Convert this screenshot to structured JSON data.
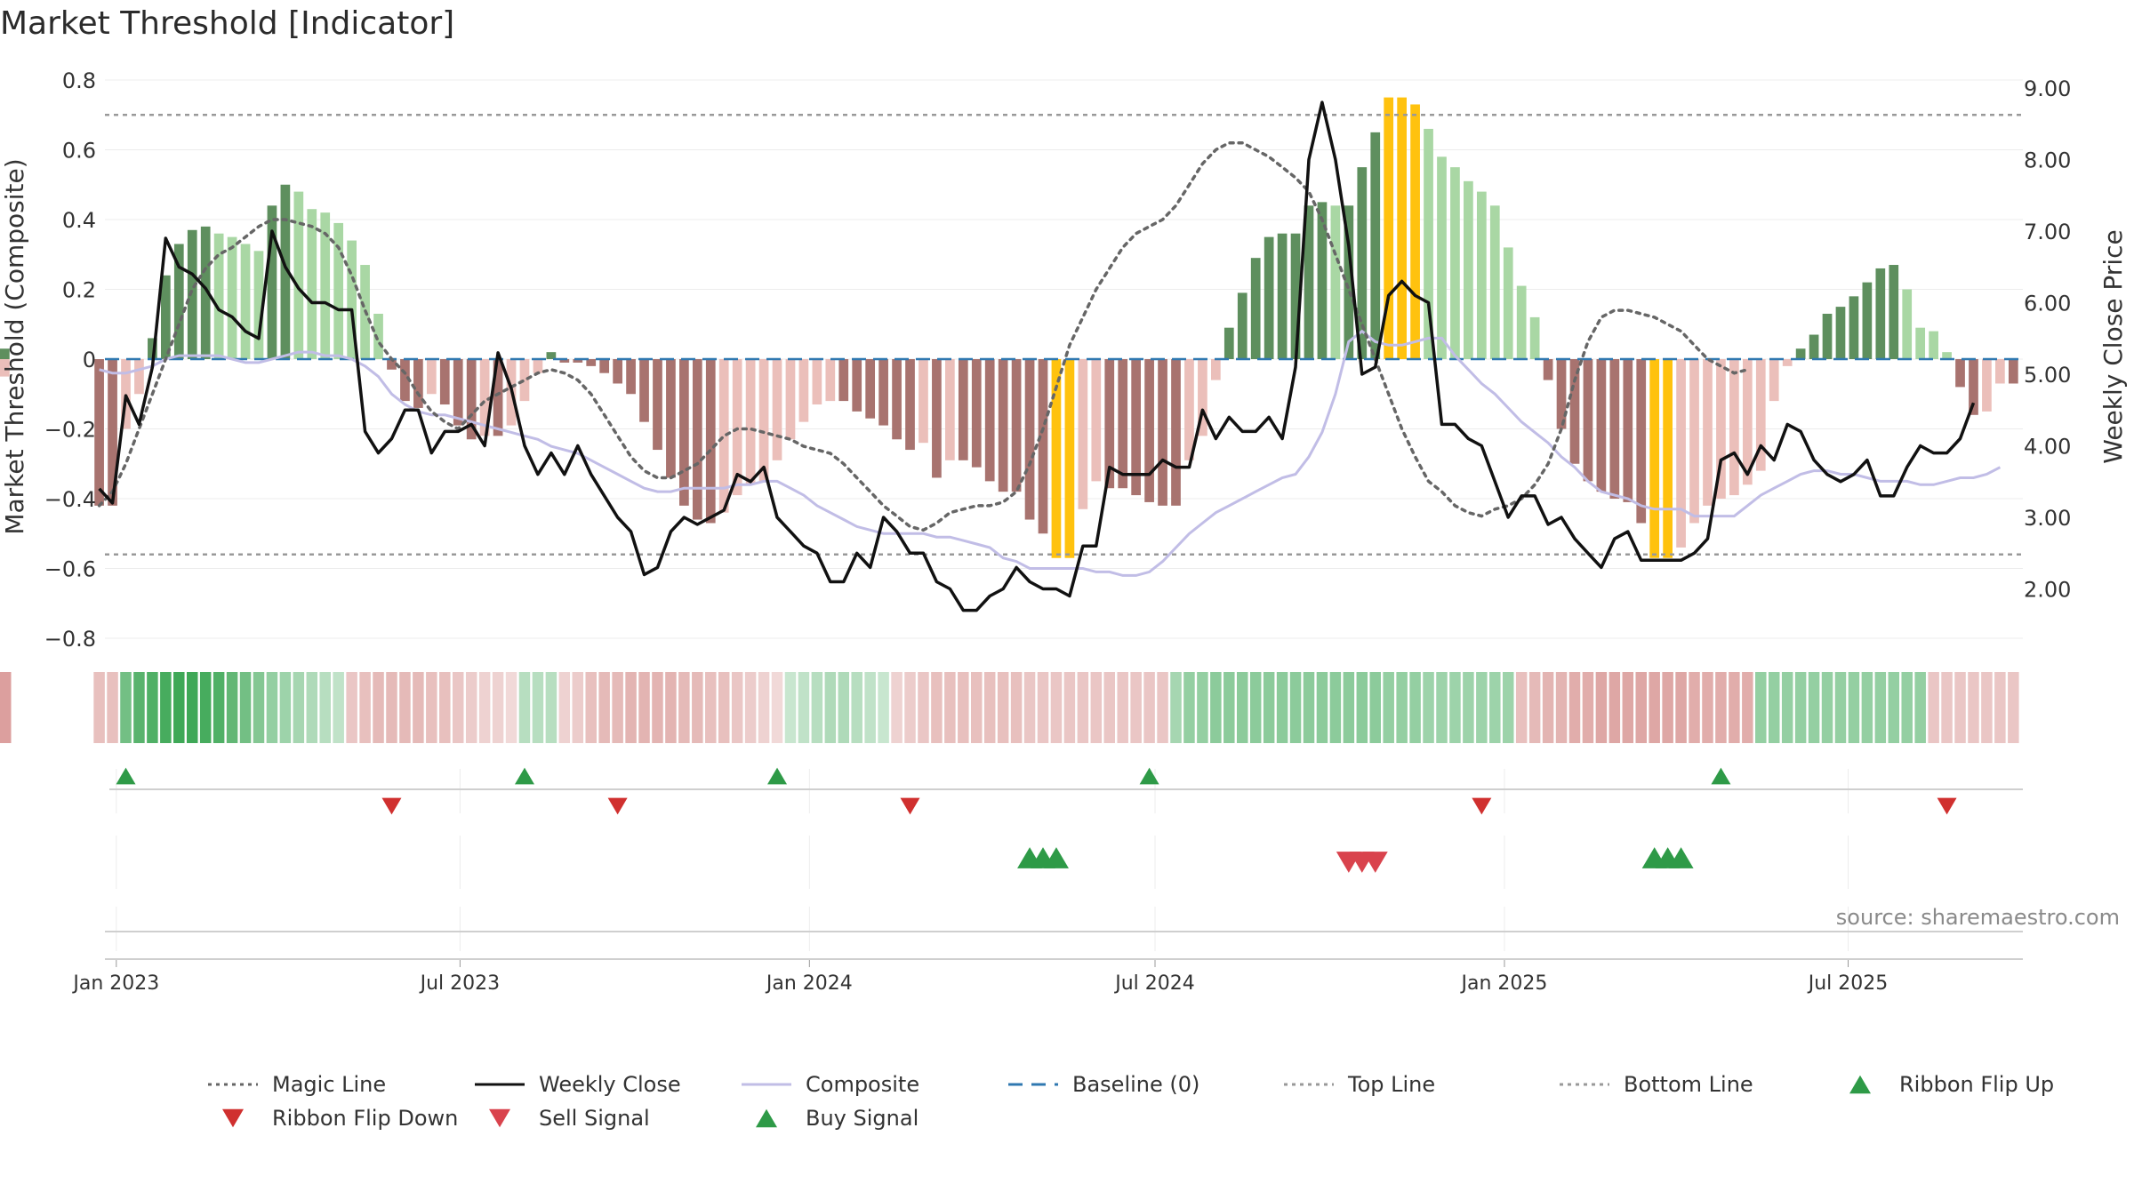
{
  "title": "Market Threshold [Indicator]",
  "source_text": "source: sharemaestro.com",
  "colors": {
    "bull_dark": "#5e8f5e",
    "bull_light": "#a9d7a4",
    "bear_dark": "#a8736f",
    "bear_light": "#ebbfba",
    "extreme": "#ffc20e",
    "magic": "#666666",
    "close": "#111111",
    "composite": "#c1bde6",
    "baseline": "#2f78b0",
    "guide": "#999999",
    "buy": "#2e9a47",
    "sell": "#d9434d",
    "flip_down": "#d0302f"
  },
  "chart_data": {
    "type": "bar",
    "x": [
      "2022-12-23",
      "2022-12-30",
      "2023-01-06",
      "2023-01-13",
      "2023-01-20",
      "2023-01-27",
      "2023-02-03",
      "2023-02-10",
      "2023-02-17",
      "2023-02-24",
      "2023-03-03",
      "2023-03-10",
      "2023-03-17",
      "2023-03-24",
      "2023-03-31",
      "2023-04-07",
      "2023-04-14",
      "2023-04-21",
      "2023-04-28",
      "2023-05-05",
      "2023-05-12",
      "2023-05-19",
      "2023-05-26",
      "2023-06-02",
      "2023-06-09",
      "2023-06-16",
      "2023-06-23",
      "2023-06-30",
      "2023-07-07",
      "2023-07-14",
      "2023-07-21",
      "2023-07-28",
      "2023-08-04",
      "2023-08-11",
      "2023-08-18",
      "2023-08-25",
      "2023-09-01",
      "2023-09-08",
      "2023-09-15",
      "2023-09-22",
      "2023-09-29",
      "2023-10-06",
      "2023-10-13",
      "2023-10-20",
      "2023-10-27",
      "2023-11-03",
      "2023-11-10",
      "2023-11-17",
      "2023-11-24",
      "2023-12-01",
      "2023-12-08",
      "2023-12-15",
      "2023-12-22",
      "2023-12-29",
      "2024-01-05",
      "2024-01-12",
      "2024-01-19",
      "2024-01-26",
      "2024-02-02",
      "2024-02-09",
      "2024-02-16",
      "2024-02-23",
      "2024-03-01",
      "2024-03-08",
      "2024-03-15",
      "2024-03-22",
      "2024-03-29",
      "2024-04-05",
      "2024-04-12",
      "2024-04-19",
      "2024-04-26",
      "2024-05-03",
      "2024-05-10",
      "2024-05-17",
      "2024-05-24",
      "2024-05-31",
      "2024-06-07",
      "2024-06-14",
      "2024-06-21",
      "2024-06-28",
      "2024-07-05",
      "2024-07-12",
      "2024-07-19",
      "2024-07-26",
      "2024-08-02",
      "2024-08-09",
      "2024-08-16",
      "2024-08-23",
      "2024-08-30",
      "2024-09-06",
      "2024-09-13",
      "2024-09-20",
      "2024-09-27",
      "2024-10-04",
      "2024-10-11",
      "2024-10-18",
      "2024-10-25",
      "2024-11-01",
      "2024-11-08",
      "2024-11-15",
      "2024-11-22",
      "2024-11-29",
      "2024-12-06",
      "2024-12-13",
      "2024-12-20",
      "2024-12-27",
      "2025-01-03",
      "2025-01-10",
      "2025-01-17",
      "2025-01-24",
      "2025-01-31",
      "2025-02-07",
      "2025-02-14",
      "2025-02-21",
      "2025-02-28",
      "2025-03-07",
      "2025-03-14",
      "2025-03-21",
      "2025-03-28",
      "2025-04-04",
      "2025-04-11",
      "2025-04-18",
      "2025-04-25",
      "2025-05-02",
      "2025-05-09",
      "2025-05-16",
      "2025-05-23",
      "2025-05-30",
      "2025-06-06",
      "2025-06-13",
      "2025-06-20",
      "2025-06-27",
      "2025-07-04",
      "2025-07-11",
      "2025-07-18",
      "2025-07-25",
      "2025-08-01",
      "2025-08-08",
      "2025-08-15",
      "2025-08-22",
      "2025-08-29",
      "2025-09-05",
      "2025-09-12",
      "2025-09-19",
      "2025-09-26"
    ],
    "composite_bars": [
      -0.42,
      -0.42,
      -0.2,
      -0.1,
      0.06,
      0.24,
      0.33,
      0.37,
      0.38,
      0.36,
      0.35,
      0.33,
      0.31,
      0.44,
      0.5,
      0.48,
      0.43,
      0.42,
      0.39,
      0.34,
      0.27,
      0.13,
      -0.03,
      -0.12,
      -0.14,
      -0.1,
      -0.13,
      -0.19,
      -0.23,
      -0.22,
      -0.22,
      -0.19,
      -0.12,
      -0.04,
      0.02,
      -0.01,
      -0.01,
      -0.02,
      -0.04,
      -0.07,
      -0.1,
      -0.18,
      -0.26,
      -0.34,
      -0.42,
      -0.46,
      -0.47,
      -0.44,
      -0.39,
      -0.36,
      -0.35,
      -0.29,
      -0.23,
      -0.18,
      -0.13,
      -0.12,
      -0.12,
      -0.15,
      -0.17,
      -0.19,
      -0.23,
      -0.26,
      -0.24,
      -0.34,
      -0.29,
      -0.29,
      -0.31,
      -0.35,
      -0.38,
      -0.38,
      -0.46,
      -0.5,
      -0.57,
      -0.57,
      -0.43,
      -0.35,
      -0.37,
      -0.37,
      -0.39,
      -0.41,
      -0.42,
      -0.42,
      -0.29,
      -0.22,
      -0.06,
      0.09,
      0.19,
      0.29,
      0.35,
      0.36,
      0.36,
      0.44,
      0.45,
      0.44,
      0.44,
      0.55,
      0.65,
      0.75,
      0.75,
      0.73,
      0.66,
      0.58,
      0.55,
      0.51,
      0.48,
      0.44,
      0.32,
      0.21,
      0.12,
      -0.06,
      -0.2,
      -0.3,
      -0.35,
      -0.38,
      -0.4,
      -0.41,
      -0.47,
      -0.57,
      -0.57,
      -0.54,
      -0.47,
      -0.42,
      -0.4,
      -0.39,
      -0.36,
      -0.32,
      -0.12,
      -0.02,
      0.03,
      0.07,
      0.13,
      0.15,
      0.18,
      0.22,
      0.26,
      0.27,
      0.2,
      0.09,
      0.08,
      0.02,
      -0.08,
      -0.16,
      -0.15,
      -0.07,
      -0.07,
      -0.05,
      -0.04,
      0.03
    ],
    "weekly_close": [
      3.4,
      3.2,
      4.7,
      4.3,
      5.1,
      6.9,
      6.5,
      6.4,
      6.2,
      5.9,
      5.8,
      5.6,
      5.5,
      7.0,
      6.5,
      6.2,
      6.0,
      6.0,
      5.9,
      5.9,
      4.2,
      3.9,
      4.1,
      4.5,
      4.5,
      3.9,
      4.2,
      4.2,
      4.3,
      4.0,
      5.3,
      4.8,
      4.0,
      3.6,
      3.9,
      3.6,
      4.0,
      3.6,
      3.3,
      3.0,
      2.8,
      2.2,
      2.3,
      2.8,
      3.0,
      2.9,
      3.0,
      3.1,
      3.6,
      3.5,
      3.7,
      3.0,
      2.8,
      2.6,
      2.5,
      2.1,
      2.1,
      2.5,
      2.3,
      3.0,
      2.8,
      2.5,
      2.5,
      2.1,
      2.0,
      1.7,
      1.7,
      1.9,
      2.0,
      2.3,
      2.1,
      2.0,
      2.0,
      1.9,
      2.6,
      2.6,
      3.7,
      3.6,
      3.6,
      3.6,
      3.8,
      3.7,
      3.7,
      4.5,
      4.1,
      4.4,
      4.2,
      4.2,
      4.4,
      4.1,
      5.1,
      8.0,
      8.8,
      8.0,
      6.8,
      5.0,
      5.1,
      6.1,
      6.3,
      6.1,
      6.0,
      4.3,
      4.3,
      4.1,
      4.0,
      3.5,
      3.0,
      3.3,
      3.3,
      2.9,
      3.0,
      2.7,
      2.5,
      2.3,
      2.7,
      2.8,
      2.4,
      2.4,
      2.4,
      2.4,
      2.5,
      2.7,
      3.8,
      3.9,
      3.6,
      4.0,
      3.8,
      4.3,
      4.2,
      3.8,
      3.6,
      3.5,
      3.6,
      3.8,
      3.3,
      3.3,
      3.7,
      4.0,
      3.9,
      3.9,
      4.1,
      4.6
    ],
    "composite_line": [
      -0.03,
      -0.04,
      -0.04,
      -0.03,
      -0.02,
      0.0,
      0.01,
      0.01,
      0.01,
      0.01,
      0.0,
      -0.01,
      -0.01,
      0.0,
      0.01,
      0.02,
      0.02,
      0.01,
      0.01,
      0.0,
      -0.02,
      -0.05,
      -0.1,
      -0.13,
      -0.15,
      -0.16,
      -0.16,
      -0.17,
      -0.18,
      -0.19,
      -0.2,
      -0.21,
      -0.22,
      -0.23,
      -0.25,
      -0.26,
      -0.27,
      -0.29,
      -0.31,
      -0.33,
      -0.35,
      -0.37,
      -0.38,
      -0.38,
      -0.37,
      -0.37,
      -0.37,
      -0.37,
      -0.36,
      -0.36,
      -0.35,
      -0.35,
      -0.37,
      -0.39,
      -0.42,
      -0.44,
      -0.46,
      -0.48,
      -0.49,
      -0.5,
      -0.5,
      -0.5,
      -0.5,
      -0.51,
      -0.51,
      -0.52,
      -0.53,
      -0.54,
      -0.57,
      -0.58,
      -0.6,
      -0.6,
      -0.6,
      -0.6,
      -0.6,
      -0.61,
      -0.61,
      -0.62,
      -0.62,
      -0.61,
      -0.58,
      -0.54,
      -0.5,
      -0.47,
      -0.44,
      -0.42,
      -0.4,
      -0.38,
      -0.36,
      -0.34,
      -0.33,
      -0.28,
      -0.21,
      -0.1,
      0.05,
      0.08,
      0.05,
      0.04,
      0.04,
      0.05,
      0.06,
      0.06,
      0.01,
      -0.03,
      -0.07,
      -0.1,
      -0.14,
      -0.18,
      -0.21,
      -0.24,
      -0.28,
      -0.31,
      -0.35,
      -0.38,
      -0.39,
      -0.4,
      -0.42,
      -0.43,
      -0.43,
      -0.43,
      -0.45,
      -0.45,
      -0.45,
      -0.45,
      -0.42,
      -0.39,
      -0.37,
      -0.35,
      -0.33,
      -0.32,
      -0.32,
      -0.33,
      -0.33,
      -0.34,
      -0.35,
      -0.35,
      -0.35,
      -0.36,
      -0.36,
      -0.35,
      -0.34,
      -0.34,
      -0.33,
      -0.31
    ],
    "magic_line": [
      -0.42,
      -0.38,
      -0.3,
      -0.2,
      -0.1,
      0.0,
      0.1,
      0.2,
      0.26,
      0.3,
      0.32,
      0.35,
      0.38,
      0.4,
      0.4,
      0.39,
      0.38,
      0.36,
      0.32,
      0.24,
      0.14,
      0.05,
      0.0,
      -0.04,
      -0.1,
      -0.15,
      -0.18,
      -0.2,
      -0.16,
      -0.12,
      -0.1,
      -0.08,
      -0.06,
      -0.04,
      -0.03,
      -0.04,
      -0.06,
      -0.1,
      -0.16,
      -0.22,
      -0.28,
      -0.32,
      -0.34,
      -0.34,
      -0.32,
      -0.3,
      -0.26,
      -0.22,
      -0.2,
      -0.2,
      -0.21,
      -0.22,
      -0.23,
      -0.25,
      -0.26,
      -0.27,
      -0.3,
      -0.34,
      -0.38,
      -0.42,
      -0.45,
      -0.48,
      -0.49,
      -0.47,
      -0.44,
      -0.43,
      -0.42,
      -0.42,
      -0.41,
      -0.38,
      -0.3,
      -0.2,
      -0.08,
      0.04,
      0.12,
      0.2,
      0.26,
      0.32,
      0.36,
      0.38,
      0.4,
      0.44,
      0.5,
      0.56,
      0.6,
      0.62,
      0.62,
      0.6,
      0.58,
      0.55,
      0.52,
      0.48,
      0.4,
      0.3,
      0.2,
      0.1,
      0.0,
      -0.1,
      -0.2,
      -0.28,
      -0.35,
      -0.38,
      -0.42,
      -0.44,
      -0.45,
      -0.43,
      -0.42,
      -0.4,
      -0.36,
      -0.3,
      -0.2,
      -0.06,
      0.05,
      0.12,
      0.14,
      0.14,
      0.13,
      0.12,
      0.1,
      0.08,
      0.04,
      0.0,
      -0.02,
      -0.04,
      -0.03
    ],
    "magic_line_start_index": 0,
    "ribbon": [
      -0.3,
      -0.3,
      0.6,
      0.75,
      0.8,
      0.85,
      0.9,
      0.9,
      0.85,
      0.8,
      0.7,
      0.6,
      0.5,
      0.4,
      0.35,
      0.3,
      0.25,
      0.2,
      0.15,
      -0.25,
      -0.3,
      -0.35,
      -0.35,
      -0.35,
      -0.35,
      -0.3,
      -0.3,
      -0.25,
      -0.2,
      -0.15,
      -0.15,
      -0.1,
      0.2,
      0.2,
      0.2,
      -0.15,
      -0.2,
      -0.3,
      -0.35,
      -0.35,
      -0.4,
      -0.4,
      -0.4,
      -0.4,
      -0.35,
      -0.35,
      -0.3,
      -0.3,
      -0.25,
      -0.2,
      -0.15,
      -0.1,
      0.1,
      0.15,
      0.2,
      0.25,
      0.25,
      0.2,
      0.15,
      0.1,
      -0.15,
      -0.2,
      -0.25,
      -0.3,
      -0.3,
      -0.3,
      -0.3,
      -0.3,
      -0.3,
      -0.3,
      -0.25,
      -0.25,
      -0.25,
      -0.25,
      -0.25,
      -0.25,
      -0.25,
      -0.25,
      -0.25,
      -0.25,
      -0.25,
      0.3,
      0.4,
      0.4,
      0.45,
      0.45,
      0.45,
      0.45,
      0.45,
      0.45,
      0.45,
      0.45,
      0.45,
      0.45,
      0.45,
      0.45,
      0.45,
      0.4,
      0.4,
      0.4,
      0.35,
      0.35,
      0.35,
      0.35,
      0.35,
      0.35,
      0.35,
      -0.3,
      -0.35,
      -0.4,
      -0.4,
      -0.45,
      -0.45,
      -0.5,
      -0.5,
      -0.5,
      -0.5,
      -0.5,
      -0.5,
      -0.5,
      -0.45,
      -0.45,
      -0.45,
      -0.45,
      -0.45,
      0.4,
      0.4,
      0.4,
      0.4,
      0.4,
      0.4,
      0.4,
      0.4,
      0.4,
      0.4,
      0.4,
      0.4,
      0.4,
      -0.25,
      -0.25,
      -0.25,
      -0.25,
      -0.25,
      -0.25,
      -0.25,
      -0.25,
      -0.25
    ],
    "ribbon_flip_up": [
      "2023-01-06",
      "2023-08-04",
      "2023-12-15",
      "2024-06-28",
      "2025-04-25"
    ],
    "ribbon_flip_down": [
      "2023-05-26",
      "2023-09-22",
      "2024-02-23",
      "2024-12-20",
      "2025-08-22"
    ],
    "buy_signals": [
      "2024-04-26",
      "2024-05-03",
      "2024-05-10",
      "2025-03-21",
      "2025-03-28",
      "2025-04-04"
    ],
    "sell_signals": [
      "2024-10-11",
      "2024-10-18",
      "2024-10-25"
    ],
    "top_line": 0.7,
    "bottom_line": -0.56,
    "baseline": 0,
    "ylim": [
      -0.85,
      0.8
    ],
    "ylim_right": [
      1.2,
      9.3
    ],
    "ylabel": "Market Threshold (Composite)",
    "ylabel_right": "Weekly Close Price",
    "yticks_left": [
      {
        "v": 0.8,
        "label": "0.8"
      },
      {
        "v": 0.6,
        "label": "0.6"
      },
      {
        "v": 0.4,
        "label": "0.4"
      },
      {
        "v": 0.2,
        "label": "0.2"
      },
      {
        "v": 0,
        "label": "0"
      },
      {
        "v": -0.2,
        "label": "−0.2"
      },
      {
        "v": -0.4,
        "label": "−0.4"
      },
      {
        "v": -0.6,
        "label": "−0.6"
      },
      {
        "v": -0.8,
        "label": "−0.8"
      }
    ],
    "yticks_right": [
      {
        "v": 9,
        "label": "9.00"
      },
      {
        "v": 8,
        "label": "8.00"
      },
      {
        "v": 7,
        "label": "7.00"
      },
      {
        "v": 6,
        "label": "6.00"
      },
      {
        "v": 5,
        "label": "5.00"
      },
      {
        "v": 4,
        "label": "4.00"
      },
      {
        "v": 3,
        "label": "3.00"
      },
      {
        "v": 2,
        "label": "2.00"
      }
    ],
    "xticks": [
      {
        "date": "2023-01-01",
        "label": "Jan 2023"
      },
      {
        "date": "2023-07-01",
        "label": "Jul 2023"
      },
      {
        "date": "2024-01-01",
        "label": "Jan 2024"
      },
      {
        "date": "2024-07-01",
        "label": "Jul 2024"
      },
      {
        "date": "2025-01-01",
        "label": "Jan 2025"
      },
      {
        "date": "2025-07-01",
        "label": "Jul 2025"
      }
    ],
    "legend_placement": "bottom",
    "legend": [
      {
        "label": "Magic Line",
        "kind": "dotted",
        "color": "#666666"
      },
      {
        "label": "Weekly Close",
        "kind": "solid",
        "color": "#111111"
      },
      {
        "label": "Composite",
        "kind": "solid",
        "color": "#c1bde6"
      },
      {
        "label": "Baseline (0)",
        "kind": "dashed",
        "color": "#2f78b0"
      },
      {
        "label": "Top Line",
        "kind": "dotted",
        "color": "#999999"
      },
      {
        "label": "Bottom Line",
        "kind": "dotted",
        "color": "#999999"
      },
      {
        "label": "Ribbon Flip Up",
        "kind": "tri-up",
        "color": "#2e9a47"
      },
      {
        "label": "Ribbon Flip Down",
        "kind": "tri-down",
        "color": "#d0302f"
      },
      {
        "label": "Sell Signal",
        "kind": "tri-down",
        "color": "#d9434d"
      },
      {
        "label": "Buy Signal",
        "kind": "tri-up",
        "color": "#2e9a47"
      }
    ]
  }
}
